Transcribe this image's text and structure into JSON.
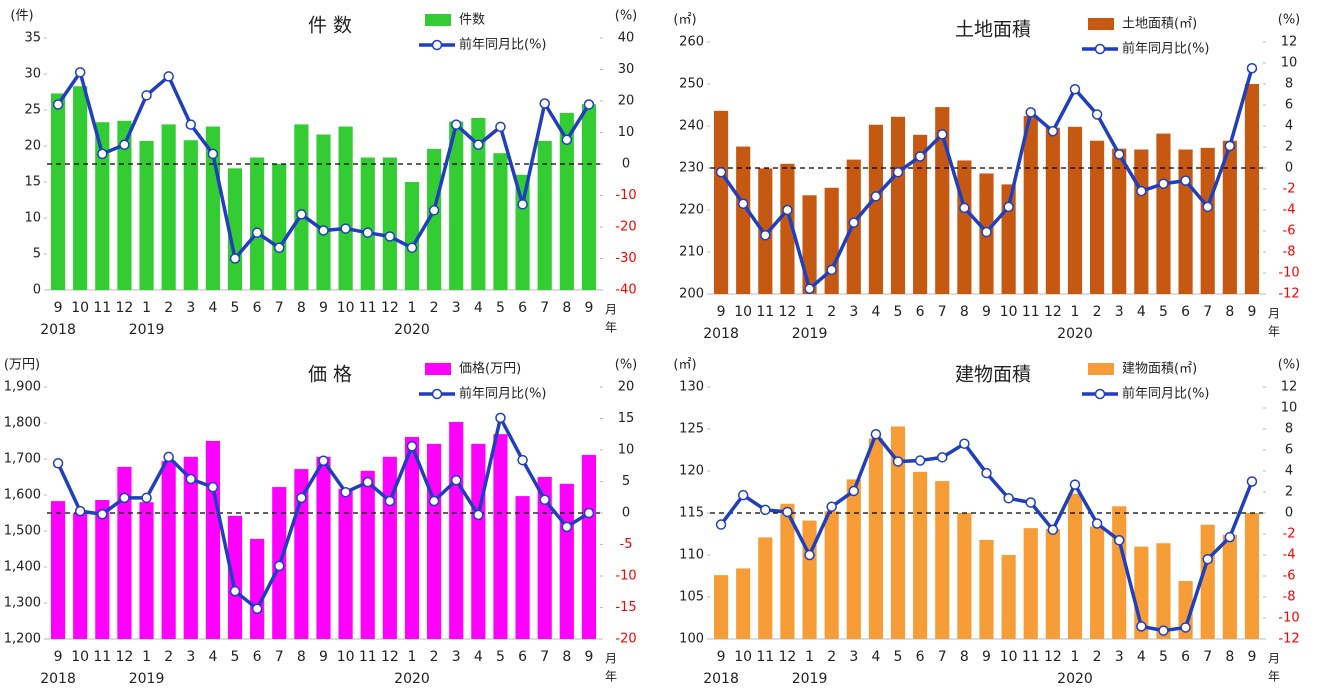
{
  "chart_data": [
    {
      "type": "combo",
      "title": "件 数",
      "y_unit": "(件)",
      "y2_unit": "(%)",
      "x_unit": [
        "月",
        "年"
      ],
      "categories": [
        "9",
        "10",
        "11",
        "12",
        "1",
        "2",
        "3",
        "4",
        "5",
        "6",
        "7",
        "8",
        "9",
        "10",
        "11",
        "12",
        "1",
        "2",
        "3",
        "4",
        "5",
        "6",
        "7",
        "8",
        "9"
      ],
      "x_group_labels": [
        "2018",
        null,
        null,
        null,
        "2019",
        null,
        null,
        null,
        null,
        null,
        null,
        null,
        null,
        null,
        null,
        null,
        "2020",
        null,
        null,
        null,
        null,
        null,
        null,
        null,
        null
      ],
      "series": [
        {
          "name": "件数",
          "type": "bar",
          "color": "#33cc33",
          "values": [
            27.3,
            28.3,
            23.3,
            23.5,
            20.7,
            23,
            20.8,
            22.7,
            16.9,
            18.4,
            17.5,
            23,
            21.6,
            22.7,
            18.4,
            18.4,
            15,
            19.6,
            23.4,
            23.9,
            19,
            16,
            20.7,
            24.6,
            25.8
          ]
        },
        {
          "name": "前年同月比(%)",
          "type": "line",
          "axis": "y2",
          "color": "#1f3fbf",
          "values": [
            18.9,
            29.1,
            3.2,
            6.1,
            21.8,
            27.8,
            12.5,
            3.2,
            -30,
            -21.8,
            -26.6,
            -16,
            -21.1,
            -20.5,
            -21.8,
            -23,
            -26.6,
            -14.7,
            12.5,
            6.1,
            11.8,
            -12.8,
            19.2,
            7.7,
            18.9
          ]
        }
      ],
      "ylim": [
        0,
        35
      ],
      "yticks": [
        0,
        5,
        10,
        15,
        20,
        25,
        30,
        35
      ],
      "y2lim": [
        -40,
        40
      ],
      "y2ticks": [
        -40,
        -30,
        -20,
        -10,
        0,
        10,
        20,
        30,
        40
      ],
      "zero_line": true,
      "y2_negative_tick_color": "#ff0000"
    },
    {
      "type": "combo",
      "title": "土地面積",
      "y_unit": "(㎡)",
      "y2_unit": "(%)",
      "x_unit": [
        "月",
        "年"
      ],
      "categories": [
        "9",
        "10",
        "11",
        "12",
        "1",
        "2",
        "3",
        "4",
        "5",
        "6",
        "7",
        "8",
        "9",
        "10",
        "11",
        "12",
        "1",
        "2",
        "3",
        "4",
        "5",
        "6",
        "7",
        "8",
        "9"
      ],
      "x_group_labels": [
        "2018",
        null,
        null,
        null,
        "2019",
        null,
        null,
        null,
        null,
        null,
        null,
        null,
        null,
        null,
        null,
        null,
        "2020",
        null,
        null,
        null,
        null,
        null,
        null,
        null,
        null
      ],
      "series": [
        {
          "name": "土地面積(㎡)",
          "type": "bar",
          "color": "#c65911",
          "values": [
            243.6,
            235.1,
            229.9,
            231,
            223.5,
            225.3,
            232,
            240.3,
            242.2,
            237.9,
            244.5,
            231.8,
            228.7,
            226.1,
            242.4,
            239.6,
            239.8,
            236.5,
            234.6,
            234.4,
            238.2,
            234.4,
            234.8,
            236.5,
            250
          ]
        },
        {
          "name": "前年同月比(%)",
          "type": "line",
          "axis": "y2",
          "color": "#1f3fbf",
          "values": [
            -0.4,
            -3.4,
            -6.4,
            -4,
            -11.5,
            -9.7,
            -5.2,
            -2.7,
            -0.4,
            1.1,
            3.2,
            -3.8,
            -6.1,
            -3.7,
            5.3,
            3.5,
            7.5,
            5.1,
            1.3,
            -2.2,
            -1.5,
            -1.2,
            -3.7,
            2.1,
            9.5
          ]
        }
      ],
      "ylim": [
        200,
        260
      ],
      "yticks": [
        200,
        210,
        220,
        230,
        240,
        250,
        260
      ],
      "y2lim": [
        -12,
        12
      ],
      "y2ticks": [
        -12,
        -10,
        -8,
        -6,
        -4,
        -2,
        0,
        2,
        4,
        6,
        8,
        10,
        12
      ],
      "zero_line": true,
      "y2_negative_tick_color": "#ff0000"
    },
    {
      "type": "combo",
      "title": "価 格",
      "y_unit": "(万円)",
      "y2_unit": "(%)",
      "x_unit": [
        "月",
        "年"
      ],
      "categories": [
        "9",
        "10",
        "11",
        "12",
        "1",
        "2",
        "3",
        "4",
        "5",
        "6",
        "7",
        "8",
        "9",
        "10",
        "11",
        "12",
        "1",
        "2",
        "3",
        "4",
        "5",
        "6",
        "7",
        "8",
        "9"
      ],
      "x_group_labels": [
        "2018",
        null,
        null,
        null,
        "2019",
        null,
        null,
        null,
        null,
        null,
        null,
        null,
        null,
        null,
        null,
        null,
        "2020",
        null,
        null,
        null,
        null,
        null,
        null,
        null,
        null
      ],
      "series": [
        {
          "name": "価格(万円)",
          "type": "bar",
          "color": "#ff00ff",
          "values": [
            1583,
            1550,
            1586,
            1678,
            1580,
            1694,
            1706,
            1750,
            1542,
            1478,
            1622,
            1672,
            1706,
            1617,
            1667,
            1706,
            1761,
            1742,
            1803,
            1742,
            1769,
            1597,
            1650,
            1631,
            1711
          ]
        },
        {
          "name": "前年同月比(%)",
          "type": "line",
          "axis": "y2",
          "color": "#1f3fbf",
          "values": [
            7.9,
            0.3,
            -0.2,
            2.4,
            2.4,
            8.9,
            5.4,
            4.1,
            -12.4,
            -15.2,
            -8.4,
            2.4,
            8.3,
            3.3,
            4.9,
            1.9,
            10.6,
            1.9,
            5.2,
            -0.3,
            15.1,
            8.4,
            2.1,
            -2.2,
            0
          ]
        }
      ],
      "ylim": [
        1200,
        1900
      ],
      "yticks": [
        {
          "value": 1200,
          "label": "1,200"
        },
        {
          "value": 1300,
          "label": "1,300"
        },
        {
          "value": 1400,
          "label": "1,400"
        },
        {
          "value": 1500,
          "label": "1,500"
        },
        {
          "value": 1600,
          "label": "1,600"
        },
        {
          "value": 1700,
          "label": "1,700"
        },
        {
          "value": 1800,
          "label": "1,800"
        },
        {
          "value": 1900,
          "label": "1,900"
        }
      ],
      "y2lim": [
        -20,
        20
      ],
      "y2ticks": [
        -20,
        -15,
        -10,
        -5,
        0,
        5,
        10,
        15,
        20
      ],
      "zero_line": true,
      "y2_negative_tick_color": "#ff0000"
    },
    {
      "type": "combo",
      "title": "建物面積",
      "y_unit": "(㎡)",
      "y2_unit": "(%)",
      "x_unit": [
        "月",
        "年"
      ],
      "categories": [
        "9",
        "10",
        "11",
        "12",
        "1",
        "2",
        "3",
        "4",
        "5",
        "6",
        "7",
        "8",
        "9",
        "10",
        "11",
        "12",
        "1",
        "2",
        "3",
        "4",
        "5",
        "6",
        "7",
        "8",
        "9"
      ],
      "x_group_labels": [
        "2018",
        null,
        null,
        null,
        "2019",
        null,
        null,
        null,
        null,
        null,
        null,
        null,
        null,
        null,
        null,
        null,
        "2020",
        null,
        null,
        null,
        null,
        null,
        null,
        null,
        null
      ],
      "series": [
        {
          "name": "建物面積(㎡)",
          "type": "bar",
          "color": "#f79d37",
          "values": [
            107.6,
            108.4,
            112.1,
            116.1,
            114.1,
            115.2,
            119,
            123.9,
            125.3,
            119.9,
            118.8,
            115,
            111.8,
            110,
            113.2,
            113.1,
            117.3,
            113.4,
            115.8,
            111,
            111.4,
            106.9,
            113.6,
            112.4,
            115
          ]
        },
        {
          "name": "前年同月比(%)",
          "type": "line",
          "axis": "y2",
          "color": "#1f3fbf",
          "values": [
            -1.1,
            1.7,
            0.3,
            0.1,
            -4,
            0.6,
            2.1,
            7.5,
            4.9,
            5,
            5.3,
            6.6,
            3.8,
            1.4,
            1,
            -1.6,
            2.7,
            -1,
            -2.6,
            -10.8,
            -11.2,
            -10.9,
            -4.4,
            -2.3,
            3
          ]
        }
      ],
      "ylim": [
        100,
        130
      ],
      "yticks": [
        100,
        105,
        110,
        115,
        120,
        125,
        130
      ],
      "y2lim": [
        -12,
        12
      ],
      "y2ticks": [
        -12,
        -10,
        -8,
        -6,
        -4,
        -2,
        0,
        2,
        4,
        6,
        8,
        10,
        12
      ],
      "zero_line": true,
      "y2_negative_tick_color": "#ff0000"
    }
  ]
}
